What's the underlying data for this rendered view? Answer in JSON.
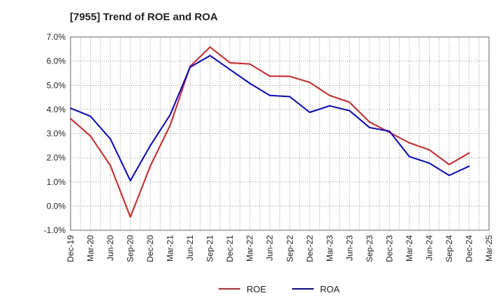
{
  "chart_data": {
    "type": "line",
    "title": "[7955]  Trend of ROE and ROA",
    "xlabel": "",
    "ylabel": "",
    "categories": [
      "Dec-19",
      "Mar-20",
      "Jun-20",
      "Sep-20",
      "Dec-20",
      "Mar-21",
      "Jun-21",
      "Sep-21",
      "Dec-21",
      "Mar-22",
      "Jun-22",
      "Sep-22",
      "Dec-22",
      "Mar-23",
      "Jun-23",
      "Sep-23",
      "Dec-23",
      "Mar-24",
      "Jun-24",
      "Sep-24",
      "Dec-24",
      "Mar-25"
    ],
    "y_ticks": [
      "-1.0%",
      "0.0%",
      "1.0%",
      "2.0%",
      "3.0%",
      "4.0%",
      "5.0%",
      "6.0%",
      "7.0%"
    ],
    "ylim": [
      -1.0,
      7.0
    ],
    "grid": true,
    "legend_position": "bottom-center",
    "series": [
      {
        "name": "ROE",
        "color": "#e31a1c",
        "values": [
          3.62,
          2.9,
          1.68,
          -0.45,
          1.65,
          3.35,
          5.78,
          6.58,
          5.93,
          5.88,
          5.38,
          5.37,
          5.12,
          4.58,
          4.3,
          3.48,
          3.05,
          2.62,
          2.33,
          1.72,
          2.2,
          null
        ]
      },
      {
        "name": "ROA",
        "color": "#0000e6",
        "values": [
          4.05,
          3.72,
          2.78,
          1.05,
          2.5,
          3.78,
          5.75,
          6.23,
          5.65,
          5.08,
          4.58,
          4.53,
          3.88,
          4.15,
          3.95,
          3.25,
          3.1,
          2.05,
          1.78,
          1.27,
          1.65,
          null
        ]
      }
    ]
  }
}
